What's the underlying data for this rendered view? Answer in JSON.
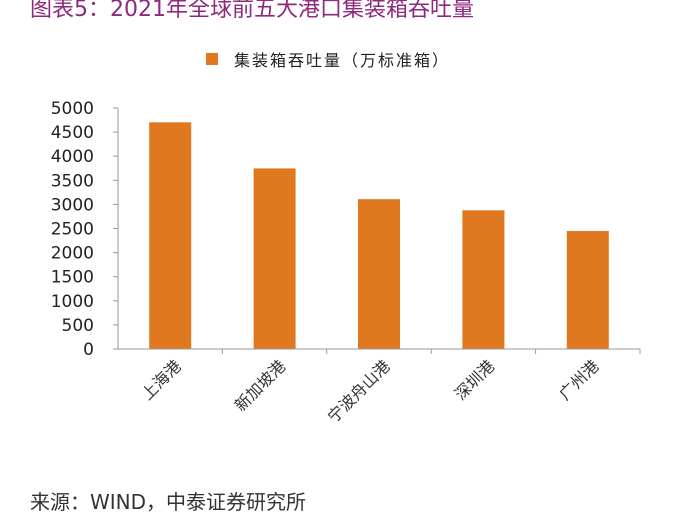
{
  "header": {
    "title": "图表5：2021年全球前五大港口集装箱吞吐量"
  },
  "chart_data": {
    "type": "bar",
    "categories": [
      "上海港",
      "新加坡港",
      "宁波舟山港",
      "深圳港",
      "广州港"
    ],
    "series": [
      {
        "name": "集装箱吞吐量（万标准箱）",
        "values": [
          4703,
          3747,
          3108,
          2877,
          2447
        ],
        "color": "#e07820"
      }
    ],
    "ylim": [
      0,
      5000
    ],
    "yticks": [
      0,
      500,
      1000,
      1500,
      2000,
      2500,
      3000,
      3500,
      4000,
      4500,
      5000
    ],
    "legend_position": "top-center",
    "grid": false
  },
  "footer": {
    "source": "来源：WIND，中泰证券研究所"
  }
}
